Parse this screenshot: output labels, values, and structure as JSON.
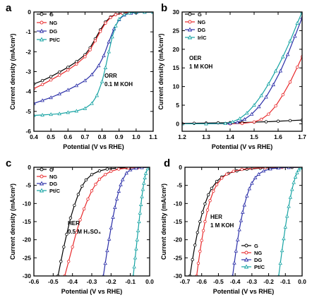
{
  "chart_data": [
    {
      "type": "line",
      "panel": "a",
      "xlabel": "Potential (V vs RHE)",
      "ylabel": "Current density (mA/cm²)",
      "xlim": [
        0.4,
        1.1
      ],
      "ylim": [
        -6,
        0
      ],
      "xticks": [
        "0.4",
        "0.5",
        "0.6",
        "0.7",
        "0.8",
        "0.9",
        "1.0",
        "1.1"
      ],
      "yticks": [
        "0",
        "-1",
        "-2",
        "-3",
        "-4",
        "-5",
        "-6"
      ],
      "annotation": [
        "ORR",
        "0.1 M KOH"
      ],
      "legend_position": "top-left",
      "series": [
        {
          "name": "G",
          "color": "#000000",
          "marker": "circle",
          "x": [
            0.4,
            0.45,
            0.5,
            0.55,
            0.6,
            0.65,
            0.7,
            0.73,
            0.76,
            0.79,
            0.82,
            0.85,
            0.88,
            0.92,
            0.96,
            1.0,
            1.05,
            1.1
          ],
          "y": [
            -3.62,
            -3.45,
            -3.25,
            -3.02,
            -2.78,
            -2.5,
            -2.15,
            -1.8,
            -1.35,
            -0.9,
            -0.5,
            -0.25,
            -0.12,
            -0.06,
            -0.03,
            -0.02,
            -0.01,
            -0.01
          ]
        },
        {
          "name": "NG",
          "color": "#e8292b",
          "marker": "circle",
          "x": [
            0.4,
            0.45,
            0.5,
            0.55,
            0.6,
            0.65,
            0.7,
            0.73,
            0.76,
            0.79,
            0.82,
            0.85,
            0.88,
            0.92,
            0.96,
            1.0,
            1.05,
            1.1
          ],
          "y": [
            -3.85,
            -3.65,
            -3.42,
            -3.18,
            -2.92,
            -2.62,
            -2.25,
            -1.9,
            -1.45,
            -0.98,
            -0.56,
            -0.28,
            -0.13,
            -0.06,
            -0.03,
            -0.02,
            -0.01,
            -0.01
          ]
        },
        {
          "name": "DG",
          "color": "#2b2fa8",
          "marker": "triangle",
          "x": [
            0.4,
            0.45,
            0.5,
            0.55,
            0.6,
            0.65,
            0.7,
            0.74,
            0.78,
            0.81,
            0.84,
            0.87,
            0.9,
            0.93,
            0.97,
            1.0,
            1.05,
            1.1
          ],
          "y": [
            -4.6,
            -4.45,
            -4.3,
            -4.12,
            -3.92,
            -3.7,
            -3.45,
            -3.15,
            -2.7,
            -2.2,
            -1.5,
            -0.85,
            -0.38,
            -0.15,
            -0.06,
            -0.03,
            -0.01,
            -0.01
          ]
        },
        {
          "name": "Pt/C",
          "color": "#16a3a3",
          "marker": "triangle",
          "x": [
            0.4,
            0.45,
            0.5,
            0.55,
            0.6,
            0.65,
            0.7,
            0.74,
            0.77,
            0.8,
            0.82,
            0.84,
            0.86,
            0.88,
            0.9,
            0.93,
            0.96,
            1.0,
            1.05,
            1.1
          ],
          "y": [
            -5.2,
            -5.18,
            -5.15,
            -5.12,
            -5.05,
            -4.98,
            -4.85,
            -4.6,
            -4.2,
            -3.5,
            -2.8,
            -2.0,
            -1.25,
            -0.7,
            -0.35,
            -0.12,
            -0.05,
            -0.02,
            -0.01,
            -0.01
          ]
        }
      ]
    },
    {
      "type": "line",
      "panel": "b",
      "xlabel": "Potential (V vs RHE)",
      "ylabel": "Current density (mA/cm²)",
      "xlim": [
        1.2,
        1.7
      ],
      "ylim": [
        -2,
        30
      ],
      "xticks": [
        "1.2",
        "1.3",
        "1.4",
        "1.5",
        "1.6",
        "1.7"
      ],
      "yticks": [
        "0",
        "5",
        "10",
        "15",
        "20",
        "25",
        "30"
      ],
      "annotation": [
        "OER",
        "1 M KOH"
      ],
      "legend_position": "top-left",
      "series": [
        {
          "name": "G",
          "color": "#000000",
          "marker": "circle",
          "x": [
            1.2,
            1.25,
            1.3,
            1.35,
            1.4,
            1.45,
            1.5,
            1.55,
            1.6,
            1.65,
            1.7
          ],
          "y": [
            0.1,
            0.15,
            0.2,
            0.25,
            0.3,
            0.35,
            0.45,
            0.55,
            0.7,
            0.85,
            1.0
          ]
        },
        {
          "name": "NG",
          "color": "#e8292b",
          "marker": "circle",
          "x": [
            1.2,
            1.3,
            1.4,
            1.45,
            1.5,
            1.53,
            1.56,
            1.59,
            1.62,
            1.65,
            1.68,
            1.7
          ],
          "y": [
            0.0,
            0.0,
            0.0,
            0.1,
            0.5,
            1.2,
            2.6,
            4.8,
            7.8,
            11.2,
            15.2,
            18.0
          ]
        },
        {
          "name": "DG",
          "color": "#2b2fa8",
          "marker": "triangle",
          "x": [
            1.2,
            1.3,
            1.4,
            1.43,
            1.46,
            1.49,
            1.52,
            1.55,
            1.58,
            1.61,
            1.64,
            1.67,
            1.7
          ],
          "y": [
            0.0,
            0.0,
            0.1,
            0.4,
            1.2,
            2.6,
            4.6,
            7.2,
            10.5,
            14.2,
            18.6,
            23.5,
            28.5
          ]
        },
        {
          "name": "IrlC",
          "color": "#16a3a3",
          "marker": "triangle",
          "x": [
            1.2,
            1.3,
            1.38,
            1.41,
            1.44,
            1.47,
            1.5,
            1.53,
            1.56,
            1.59,
            1.62,
            1.65,
            1.68,
            1.7
          ],
          "y": [
            0.0,
            0.0,
            0.1,
            0.5,
            1.4,
            2.9,
            5.0,
            7.6,
            10.7,
            14.2,
            18.0,
            22.2,
            27.0,
            30.0
          ]
        }
      ]
    },
    {
      "type": "line",
      "panel": "c",
      "xlabel": "Potential (V vs RHE)",
      "ylabel": "Current density (mA/cm²)",
      "xlim": [
        -0.6,
        0.0
      ],
      "ylim": [
        -30,
        0
      ],
      "xticks": [
        "-0.6",
        "-0.5",
        "-0.4",
        "-0.3",
        "-0.2",
        "-0.1",
        "0.0"
      ],
      "yticks": [
        "0",
        "-5",
        "-10",
        "-15",
        "-20",
        "-25",
        "-30"
      ],
      "annotation": [
        "HER",
        "0.5 M H₂SO₄"
      ],
      "legend_position": "top-left",
      "series": [
        {
          "name": "G",
          "color": "#000000",
          "marker": "circle",
          "x": [
            -0.475,
            -0.46,
            -0.445,
            -0.43,
            -0.41,
            -0.39,
            -0.37,
            -0.35,
            -0.33,
            -0.3,
            -0.26,
            -0.22,
            -0.17,
            -0.12,
            -0.06,
            0.0
          ],
          "y": [
            -30,
            -26,
            -22,
            -18.5,
            -14,
            -10.5,
            -7.5,
            -5.2,
            -3.5,
            -2.0,
            -1.0,
            -0.5,
            -0.25,
            -0.1,
            -0.05,
            0.0
          ]
        },
        {
          "name": "NG",
          "color": "#e8292b",
          "marker": "circle",
          "x": [
            -0.44,
            -0.42,
            -0.4,
            -0.38,
            -0.36,
            -0.34,
            -0.32,
            -0.3,
            -0.28,
            -0.26,
            -0.23,
            -0.2,
            -0.16,
            -0.11,
            -0.06,
            0.0
          ],
          "y": [
            -30,
            -26,
            -22,
            -18,
            -14.5,
            -11.5,
            -8.8,
            -6.5,
            -4.7,
            -3.3,
            -2.0,
            -1.1,
            -0.5,
            -0.2,
            -0.08,
            0.0
          ]
        },
        {
          "name": "DG",
          "color": "#2b2fa8",
          "marker": "triangle",
          "x": [
            -0.24,
            -0.23,
            -0.22,
            -0.21,
            -0.2,
            -0.19,
            -0.18,
            -0.17,
            -0.16,
            -0.15,
            -0.14,
            -0.12,
            -0.1,
            -0.07,
            -0.04,
            0.0
          ],
          "y": [
            -30,
            -26.5,
            -23,
            -19.8,
            -16.7,
            -13.8,
            -11.1,
            -8.7,
            -6.6,
            -4.8,
            -3.4,
            -1.6,
            -0.7,
            -0.25,
            -0.08,
            0.0
          ]
        },
        {
          "name": "Pt/C",
          "color": "#16a3a3",
          "marker": "triangle",
          "x": [
            -0.085,
            -0.08,
            -0.075,
            -0.07,
            -0.065,
            -0.06,
            -0.055,
            -0.05,
            -0.045,
            -0.04,
            -0.035,
            -0.03,
            -0.025,
            -0.02,
            -0.01,
            0.0
          ],
          "y": [
            -30,
            -27.5,
            -25,
            -22.5,
            -20,
            -17.5,
            -15,
            -12.6,
            -10.3,
            -8.1,
            -6.1,
            -4.4,
            -2.9,
            -1.7,
            -0.4,
            0.0
          ]
        }
      ]
    },
    {
      "type": "line",
      "panel": "d",
      "xlabel": "Potential (V vs RHE)",
      "ylabel": "Current density (mA/cm²)",
      "xlim": [
        -0.7,
        0.0
      ],
      "ylim": [
        -30,
        0
      ],
      "xticks": [
        "-0.7",
        "-0.6",
        "-0.5",
        "-0.4",
        "-0.3",
        "-0.2",
        "-0.1",
        "0.0"
      ],
      "yticks": [
        "0",
        "-5",
        "-10",
        "-15",
        "-20",
        "-25",
        "-30"
      ],
      "annotation": [
        "HER",
        "1 M KOH"
      ],
      "legend_position": "bottom-right",
      "series": [
        {
          "name": "G",
          "color": "#000000",
          "marker": "circle",
          "x": [
            -0.67,
            -0.655,
            -0.64,
            -0.625,
            -0.61,
            -0.595,
            -0.58,
            -0.56,
            -0.54,
            -0.51,
            -0.48,
            -0.44,
            -0.39,
            -0.33,
            -0.25,
            -0.15,
            -0.06,
            0.0
          ],
          "y": [
            -30,
            -25.5,
            -21.5,
            -18,
            -15,
            -12.4,
            -10.1,
            -7.6,
            -5.8,
            -3.9,
            -2.7,
            -1.7,
            -1.0,
            -0.55,
            -0.25,
            -0.1,
            -0.03,
            0.0
          ]
        },
        {
          "name": "NG",
          "color": "#e8292b",
          "marker": "circle",
          "x": [
            -0.63,
            -0.62,
            -0.61,
            -0.6,
            -0.59,
            -0.58,
            -0.565,
            -0.55,
            -0.53,
            -0.51,
            -0.48,
            -0.45,
            -0.41,
            -0.36,
            -0.3,
            -0.22,
            -0.12,
            0.0
          ],
          "y": [
            -30,
            -26.5,
            -23.2,
            -20.2,
            -17.5,
            -15,
            -11.8,
            -9.2,
            -6.6,
            -4.8,
            -3.0,
            -1.9,
            -1.1,
            -0.6,
            -0.3,
            -0.12,
            -0.04,
            0.0
          ]
        },
        {
          "name": "DG",
          "color": "#2b2fa8",
          "marker": "triangle",
          "x": [
            -0.415,
            -0.405,
            -0.395,
            -0.385,
            -0.375,
            -0.365,
            -0.355,
            -0.345,
            -0.33,
            -0.315,
            -0.3,
            -0.28,
            -0.26,
            -0.23,
            -0.19,
            -0.14,
            -0.08,
            0.0
          ],
          "y": [
            -30,
            -26.4,
            -23.1,
            -20,
            -17.2,
            -14.7,
            -12.4,
            -10.4,
            -7.9,
            -5.9,
            -4.4,
            -2.9,
            -1.9,
            -1.0,
            -0.45,
            -0.18,
            -0.05,
            0.0
          ]
        },
        {
          "name": "Pt/C",
          "color": "#16a3a3",
          "marker": "triangle",
          "x": [
            -0.14,
            -0.13,
            -0.12,
            -0.11,
            -0.1,
            -0.09,
            -0.08,
            -0.07,
            -0.06,
            -0.05,
            -0.04,
            -0.03,
            -0.02,
            -0.01,
            0.0
          ],
          "y": [
            -30,
            -26.5,
            -23,
            -19.7,
            -16.5,
            -13.5,
            -10.8,
            -8.3,
            -6.1,
            -4.2,
            -2.7,
            -1.5,
            -0.7,
            -0.2,
            0.0
          ]
        }
      ]
    }
  ]
}
